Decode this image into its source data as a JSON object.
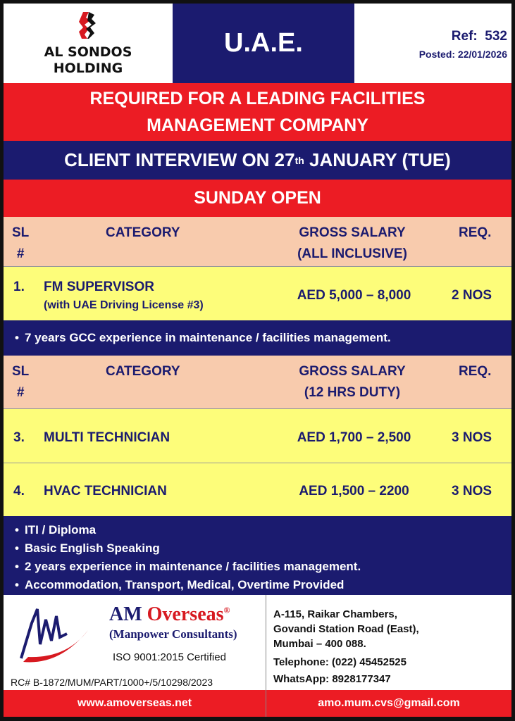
{
  "header": {
    "company": "AL SONDOS HOLDING",
    "company_line1": "AL SONDOS",
    "company_line2": "HOLDING",
    "country": "U.A.E.",
    "ref_label": "Ref:",
    "ref": "532",
    "posted": "Posted: 22/01/2026"
  },
  "title_line1": "REQUIRED FOR A LEADING FACILITIES",
  "title_line2": "MANAGEMENT COMPANY",
  "interview": {
    "pre": "CLIENT INTERVIEW ON 27",
    "sup": "th",
    "post": " JANUARY (TUE)"
  },
  "sunday": "SUNDAY OPEN",
  "table1": {
    "headers": {
      "sl": "SL",
      "hash": "#",
      "category": "CATEGORY",
      "salary": "GROSS SALARY",
      "salary_note": "(ALL INCLUSIVE)",
      "req": "REQ."
    },
    "rows": [
      {
        "sl": "1.",
        "category": "FM SUPERVISOR",
        "sub": "(with UAE Driving License #3)",
        "salary": "AED 5,000 – 8,000",
        "req": "2 NOS"
      }
    ],
    "notes": [
      "7 years GCC experience in maintenance / facilities management."
    ]
  },
  "table2": {
    "headers": {
      "sl": "SL",
      "hash": "#",
      "category": "CATEGORY",
      "salary": "GROSS SALARY",
      "salary_note": "(12 HRS DUTY)",
      "req": "REQ."
    },
    "rows": [
      {
        "sl": "3.",
        "category": "MULTI TECHNICIAN",
        "salary": "AED 1,700 – 2,500",
        "req": "3 NOS"
      },
      {
        "sl": "4.",
        "category": "HVAC TECHNICIAN",
        "salary": "AED 1,500 – 2200",
        "req": "3 NOS"
      }
    ],
    "notes": [
      "ITI / Diploma",
      "Basic English Speaking",
      "2 years experience in maintenance / facilities management.",
      "Accommodation, Transport, Medical, Overtime Provided"
    ]
  },
  "footer": {
    "brand_am": "AM",
    "brand_overseas": "Overseas",
    "reg": "®",
    "subtitle": "(Manpower Consultants)",
    "iso": "ISO 9001:2015 Certified",
    "rc": "RC# B-1872/MUM/PART/1000+/5/10298/2023",
    "address": [
      "A-115, Raikar Chambers,",
      "Govandi Station Road (East),",
      "Mumbai – 400 088."
    ],
    "telephone": "Telephone:  (022) 45452525",
    "whatsapp": "WhatsApp:  8928177347",
    "website": "www.amoverseas.net",
    "email": "amo.mum.cvs@gmail.com"
  },
  "colors": {
    "red": "#ec1c24",
    "navy": "#1b1b6f",
    "peach": "#f8cbad",
    "yellow": "#fdfd7a"
  }
}
